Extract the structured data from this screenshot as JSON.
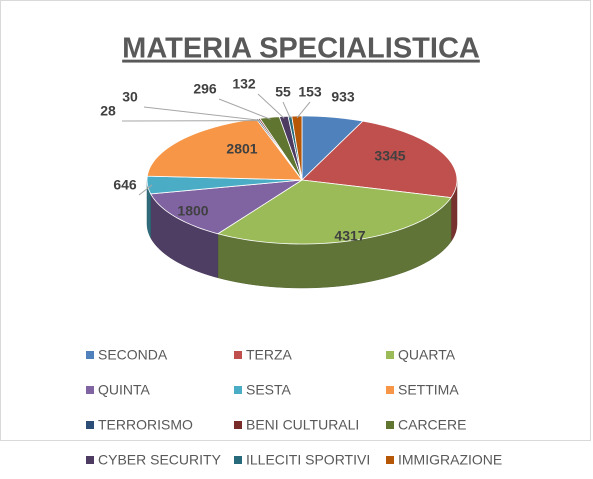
{
  "chart_data": {
    "type": "pie",
    "title": "MATERIA SPECIALISTICA",
    "categories": [
      "SECONDA",
      "TERZA",
      "QUARTA",
      "QUINTA",
      "SESTA",
      "SETTIMA",
      "TERRORISMO",
      "BENI CULTURALI",
      "CARCERE",
      "CYBER SECURITY",
      "ILLECITI SPORTIVI",
      "IMMIGRAZIONE"
    ],
    "values": [
      933,
      3345,
      4317,
      1800,
      646,
      2801,
      28,
      30,
      296,
      132,
      55,
      153
    ],
    "colors": [
      "#4f81bd",
      "#c0504d",
      "#9bbb59",
      "#8064a2",
      "#4bacc6",
      "#f79646",
      "#2c4d75",
      "#772c2a",
      "#5f7530",
      "#4d3b62",
      "#276a7c",
      "#b65708"
    ],
    "legend": "bottom"
  }
}
